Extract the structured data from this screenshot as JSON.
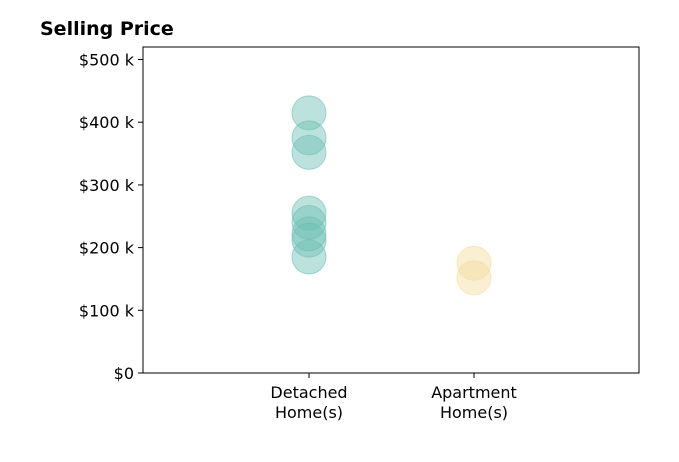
{
  "chart_data": {
    "type": "scatter",
    "title": "Selling Price",
    "xlabel": "",
    "ylabel": "",
    "categories": [
      [
        "Detached",
        "Home(s)"
      ],
      [
        "Apartment",
        "Home(s)"
      ]
    ],
    "ylim": [
      0,
      520000
    ],
    "y_ticks": [
      0,
      100000,
      200000,
      300000,
      400000,
      500000
    ],
    "y_tick_labels": [
      "$0",
      "$100 k",
      "$200 k",
      "$300 k",
      "$400 k",
      "$500 k"
    ],
    "grid": false,
    "legend": "none",
    "series": [
      {
        "category_index": 0,
        "color": "#6dbfb3",
        "values": [
          415000,
          375000,
          352000,
          255000,
          240000,
          222000,
          212000,
          185000
        ]
      },
      {
        "category_index": 1,
        "color": "#f3dc9c",
        "values": [
          175000,
          152000
        ]
      }
    ]
  }
}
